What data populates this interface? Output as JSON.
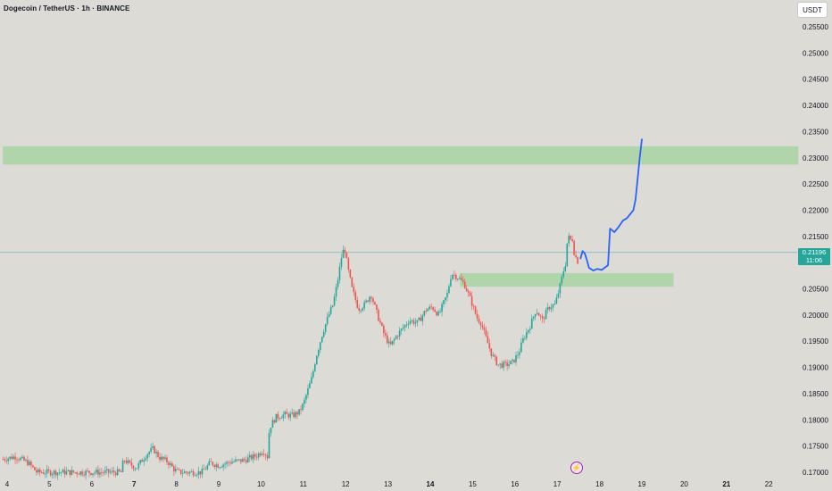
{
  "header": {
    "symbol_title": "Dogecoin / TetherUS · 1h · BINANCE",
    "currency_label": "USDT"
  },
  "current_price": {
    "price": "0.21196",
    "countdown": "11:06"
  },
  "colors": {
    "background": "#dcdbd5",
    "up_candle": "#26a69a",
    "down_candle": "#ef5350",
    "zone": "#a9d3a2",
    "projection": "#2962ff",
    "price_line": "#8fb8c4"
  },
  "chart_data": {
    "type": "candlestick",
    "symbol": "Dogecoin / TetherUS",
    "interval": "1h",
    "exchange": "BINANCE",
    "y_ticks": [
      "0.25500",
      "0.25000",
      "0.24500",
      "0.24000",
      "0.23500",
      "0.23000",
      "0.22500",
      "0.22000",
      "0.21500",
      "0.21000",
      "0.20500",
      "0.20000",
      "0.19500",
      "0.19000",
      "0.18500",
      "0.18000",
      "0.17500",
      "0.17000"
    ],
    "ylim": [
      0.1695,
      0.2575
    ],
    "x_ticks": [
      {
        "label": "4",
        "day": 4,
        "bold": false
      },
      {
        "label": "5",
        "day": 5,
        "bold": false
      },
      {
        "label": "6",
        "day": 6,
        "bold": false
      },
      {
        "label": "7",
        "day": 7,
        "bold": true
      },
      {
        "label": "8",
        "day": 8,
        "bold": false
      },
      {
        "label": "9",
        "day": 9,
        "bold": false
      },
      {
        "label": "10",
        "day": 10,
        "bold": false
      },
      {
        "label": "11",
        "day": 11,
        "bold": false
      },
      {
        "label": "12",
        "day": 12,
        "bold": false
      },
      {
        "label": "13",
        "day": 13,
        "bold": false
      },
      {
        "label": "14",
        "day": 14,
        "bold": true
      },
      {
        "label": "15",
        "day": 15,
        "bold": false
      },
      {
        "label": "16",
        "day": 16,
        "bold": false
      },
      {
        "label": "17",
        "day": 17,
        "bold": false
      },
      {
        "label": "18",
        "day": 18,
        "bold": false
      },
      {
        "label": "19",
        "day": 19,
        "bold": false
      },
      {
        "label": "20",
        "day": 20,
        "bold": false
      },
      {
        "label": "21",
        "day": 21,
        "bold": true
      },
      {
        "label": "22",
        "day": 22,
        "bold": false
      }
    ],
    "last_price": 0.21196,
    "resistance_zone": {
      "from": 0.2287,
      "to": 0.2322,
      "start_day": 3.9,
      "end_day": 22.7
    },
    "support_zone": {
      "from": 0.2054,
      "to": 0.208,
      "start_day": 14.7,
      "end_day": 19.75
    },
    "price_path": [
      [
        3.9,
        0.1725
      ],
      [
        4.2,
        0.173
      ],
      [
        4.5,
        0.1718
      ],
      [
        4.7,
        0.17
      ],
      [
        6.7,
        0.17
      ],
      [
        6.75,
        0.1725
      ],
      [
        6.9,
        0.1715
      ],
      [
        7.05,
        0.1708
      ],
      [
        7.3,
        0.1735
      ],
      [
        7.45,
        0.1745
      ],
      [
        7.6,
        0.1728
      ],
      [
        7.8,
        0.172
      ],
      [
        7.95,
        0.1705
      ],
      [
        8.05,
        0.17
      ],
      [
        8.6,
        0.17
      ],
      [
        8.8,
        0.1718
      ],
      [
        9.0,
        0.1713
      ],
      [
        9.3,
        0.172
      ],
      [
        9.6,
        0.1723
      ],
      [
        9.9,
        0.1732
      ],
      [
        10.05,
        0.1742
      ],
      [
        10.15,
        0.173
      ],
      [
        10.2,
        0.1785
      ],
      [
        10.35,
        0.1805
      ],
      [
        10.55,
        0.181
      ],
      [
        10.75,
        0.1808
      ],
      [
        10.9,
        0.1815
      ],
      [
        11.0,
        0.183
      ],
      [
        11.1,
        0.1855
      ],
      [
        11.2,
        0.188
      ],
      [
        11.3,
        0.192
      ],
      [
        11.45,
        0.1965
      ],
      [
        11.6,
        0.2
      ],
      [
        11.7,
        0.202
      ],
      [
        11.8,
        0.206
      ],
      [
        11.9,
        0.211
      ],
      [
        11.97,
        0.213
      ],
      [
        12.05,
        0.209
      ],
      [
        12.15,
        0.205
      ],
      [
        12.3,
        0.2012
      ],
      [
        12.45,
        0.202
      ],
      [
        12.6,
        0.204
      ],
      [
        12.75,
        0.2
      ],
      [
        12.9,
        0.1965
      ],
      [
        13.05,
        0.194
      ],
      [
        13.2,
        0.196
      ],
      [
        13.35,
        0.1975
      ],
      [
        13.5,
        0.199
      ],
      [
        13.7,
        0.1985
      ],
      [
        13.9,
        0.201
      ],
      [
        14.05,
        0.2015
      ],
      [
        14.2,
        0.2
      ],
      [
        14.4,
        0.204
      ],
      [
        14.5,
        0.208
      ],
      [
        14.65,
        0.2072
      ],
      [
        14.8,
        0.206
      ],
      [
        14.95,
        0.203
      ],
      [
        15.1,
        0.1995
      ],
      [
        15.2,
        0.1985
      ],
      [
        15.3,
        0.196
      ],
      [
        15.45,
        0.1925
      ],
      [
        15.6,
        0.1905
      ],
      [
        15.8,
        0.1905
      ],
      [
        15.95,
        0.191
      ],
      [
        16.1,
        0.193
      ],
      [
        16.2,
        0.1955
      ],
      [
        16.35,
        0.1978
      ],
      [
        16.5,
        0.201
      ],
      [
        16.65,
        0.199
      ],
      [
        16.8,
        0.2015
      ],
      [
        16.95,
        0.202
      ],
      [
        17.05,
        0.205
      ],
      [
        17.15,
        0.2085
      ],
      [
        17.2,
        0.21
      ],
      [
        17.25,
        0.2155
      ],
      [
        17.3,
        0.214
      ],
      [
        17.35,
        0.215
      ],
      [
        17.4,
        0.212
      ],
      [
        17.45,
        0.2108
      ],
      [
        17.5,
        0.21
      ],
      [
        17.52,
        0.2088
      ]
    ],
    "projection_path": [
      [
        17.55,
        0.2108
      ],
      [
        17.6,
        0.2122
      ],
      [
        17.65,
        0.2118
      ],
      [
        17.7,
        0.2105
      ],
      [
        17.75,
        0.209
      ],
      [
        17.85,
        0.2085
      ],
      [
        17.95,
        0.2088
      ],
      [
        18.05,
        0.2086
      ],
      [
        18.15,
        0.2092
      ],
      [
        18.2,
        0.2095
      ],
      [
        18.25,
        0.2165
      ],
      [
        18.35,
        0.2158
      ],
      [
        18.45,
        0.2168
      ],
      [
        18.55,
        0.218
      ],
      [
        18.65,
        0.2185
      ],
      [
        18.75,
        0.2195
      ],
      [
        18.8,
        0.22
      ],
      [
        18.85,
        0.222
      ],
      [
        18.9,
        0.226
      ],
      [
        18.95,
        0.23
      ],
      [
        19.0,
        0.2335
      ]
    ]
  }
}
